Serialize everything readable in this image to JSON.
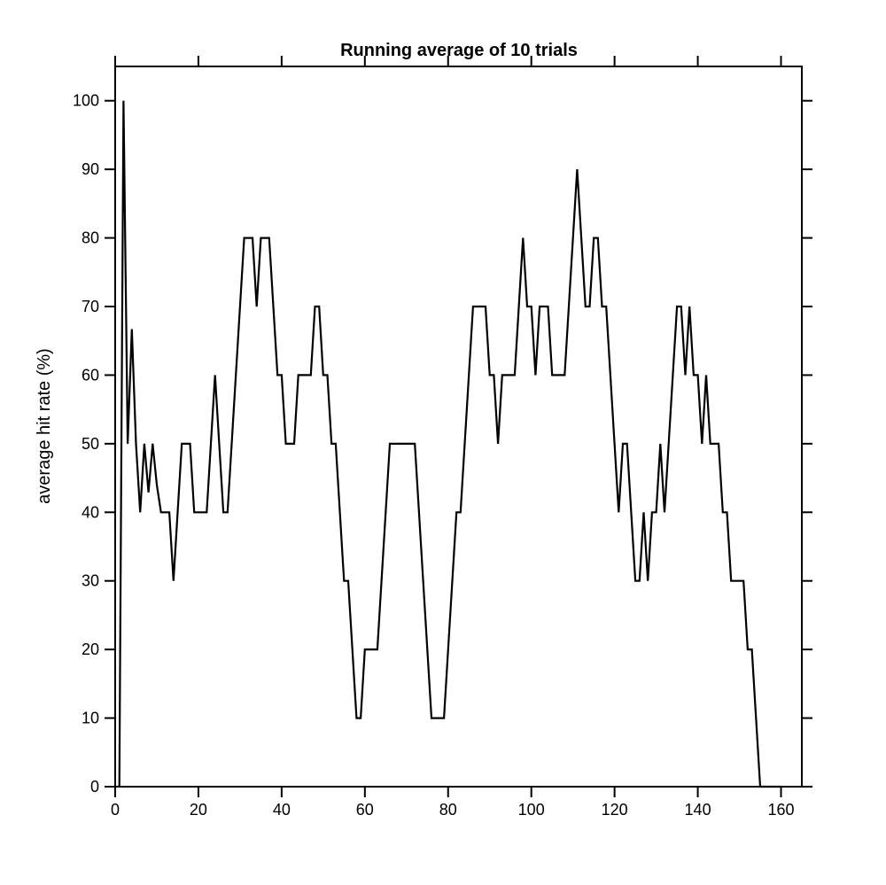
{
  "chart_data": {
    "type": "line",
    "title": "Running average of 10 trials",
    "xlabel": "",
    "ylabel": "average hit rate (%)",
    "xlim": [
      0,
      165
    ],
    "ylim": [
      0,
      105
    ],
    "x_ticks": [
      0,
      20,
      40,
      60,
      80,
      100,
      120,
      140,
      160
    ],
    "y_ticks": [
      0,
      10,
      20,
      30,
      40,
      50,
      60,
      70,
      80,
      90,
      100
    ],
    "grid": false,
    "legend": "none",
    "line_color": "#000000",
    "series": [
      {
        "points": [
          [
            1,
            0
          ],
          [
            2,
            100
          ],
          [
            3,
            50
          ],
          [
            4,
            66.7
          ],
          [
            5,
            50
          ],
          [
            6,
            40
          ],
          [
            7,
            50
          ],
          [
            8,
            42.9
          ],
          [
            9,
            50
          ],
          [
            10,
            44
          ],
          [
            11,
            40
          ],
          [
            12,
            40
          ],
          [
            13,
            40
          ],
          [
            14,
            30
          ],
          [
            15,
            40
          ],
          [
            16,
            50
          ],
          [
            17,
            50
          ],
          [
            18,
            50
          ],
          [
            19,
            40
          ],
          [
            20,
            40
          ],
          [
            21,
            40
          ],
          [
            22,
            40
          ],
          [
            23,
            50
          ],
          [
            24,
            60
          ],
          [
            25,
            50
          ],
          [
            26,
            40
          ],
          [
            27,
            40
          ],
          [
            28,
            50
          ],
          [
            29,
            60
          ],
          [
            30,
            70
          ],
          [
            31,
            80
          ],
          [
            32,
            80
          ],
          [
            33,
            80
          ],
          [
            34,
            70
          ],
          [
            35,
            80
          ],
          [
            36,
            80
          ],
          [
            37,
            80
          ],
          [
            38,
            70
          ],
          [
            39,
            60
          ],
          [
            40,
            60
          ],
          [
            41,
            50
          ],
          [
            42,
            50
          ],
          [
            43,
            50
          ],
          [
            44,
            60
          ],
          [
            45,
            60
          ],
          [
            46,
            60
          ],
          [
            47,
            60
          ],
          [
            48,
            70
          ],
          [
            49,
            70
          ],
          [
            50,
            60
          ],
          [
            51,
            60
          ],
          [
            52,
            50
          ],
          [
            53,
            50
          ],
          [
            54,
            40
          ],
          [
            55,
            30
          ],
          [
            56,
            30
          ],
          [
            57,
            20
          ],
          [
            58,
            10
          ],
          [
            59,
            10
          ],
          [
            60,
            20
          ],
          [
            61,
            20
          ],
          [
            62,
            20
          ],
          [
            63,
            20
          ],
          [
            64,
            30
          ],
          [
            65,
            40
          ],
          [
            66,
            50
          ],
          [
            67,
            50
          ],
          [
            68,
            50
          ],
          [
            69,
            50
          ],
          [
            70,
            50
          ],
          [
            71,
            50
          ],
          [
            72,
            50
          ],
          [
            73,
            40
          ],
          [
            74,
            30
          ],
          [
            75,
            20
          ],
          [
            76,
            10
          ],
          [
            77,
            10
          ],
          [
            78,
            10
          ],
          [
            79,
            10
          ],
          [
            80,
            20
          ],
          [
            81,
            30
          ],
          [
            82,
            40
          ],
          [
            83,
            40
          ],
          [
            84,
            50
          ],
          [
            85,
            60
          ],
          [
            86,
            70
          ],
          [
            87,
            70
          ],
          [
            88,
            70
          ],
          [
            89,
            70
          ],
          [
            90,
            60
          ],
          [
            91,
            60
          ],
          [
            92,
            50
          ],
          [
            93,
            60
          ],
          [
            94,
            60
          ],
          [
            95,
            60
          ],
          [
            96,
            60
          ],
          [
            97,
            70
          ],
          [
            98,
            80
          ],
          [
            99,
            70
          ],
          [
            100,
            70
          ],
          [
            101,
            60
          ],
          [
            102,
            70
          ],
          [
            103,
            70
          ],
          [
            104,
            70
          ],
          [
            105,
            60
          ],
          [
            106,
            60
          ],
          [
            107,
            60
          ],
          [
            108,
            60
          ],
          [
            109,
            70
          ],
          [
            110,
            80
          ],
          [
            111,
            90
          ],
          [
            112,
            80
          ],
          [
            113,
            70
          ],
          [
            114,
            70
          ],
          [
            115,
            80
          ],
          [
            116,
            80
          ],
          [
            117,
            70
          ],
          [
            118,
            70
          ],
          [
            119,
            60
          ],
          [
            120,
            50
          ],
          [
            121,
            40
          ],
          [
            122,
            50
          ],
          [
            123,
            50
          ],
          [
            124,
            40
          ],
          [
            125,
            30
          ],
          [
            126,
            30
          ],
          [
            127,
            40
          ],
          [
            128,
            30
          ],
          [
            129,
            40
          ],
          [
            130,
            40
          ],
          [
            131,
            50
          ],
          [
            132,
            40
          ],
          [
            133,
            50
          ],
          [
            134,
            60
          ],
          [
            135,
            70
          ],
          [
            136,
            70
          ],
          [
            137,
            60
          ],
          [
            138,
            70
          ],
          [
            139,
            60
          ],
          [
            140,
            60
          ],
          [
            141,
            50
          ],
          [
            142,
            60
          ],
          [
            143,
            50
          ],
          [
            144,
            50
          ],
          [
            145,
            50
          ],
          [
            146,
            40
          ],
          [
            147,
            40
          ],
          [
            148,
            30
          ],
          [
            149,
            30
          ],
          [
            150,
            30
          ],
          [
            151,
            30
          ],
          [
            152,
            20
          ],
          [
            153,
            20
          ],
          [
            154,
            10
          ],
          [
            155,
            0
          ],
          [
            156,
            0
          ],
          [
            157,
            0
          ],
          [
            158,
            0
          ],
          [
            159,
            0
          ],
          [
            160,
            0
          ]
        ]
      }
    ]
  }
}
